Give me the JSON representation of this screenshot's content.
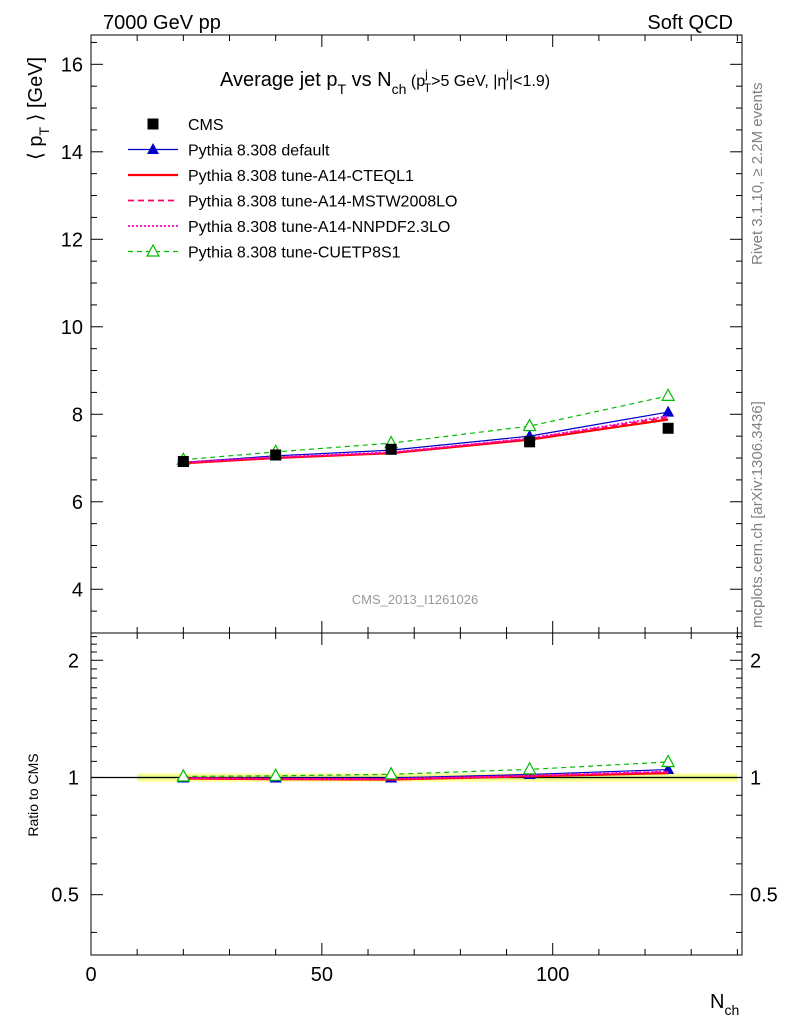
{
  "header": {
    "left": "7000 GeV pp",
    "right": "Soft QCD"
  },
  "side_labels": {
    "top": "Rivet 3.1.10, ≥ 2.2M events",
    "bottom": "mcplots.cern.ch [arXiv:1306.3436]"
  },
  "analysis_tag": "CMS_2013_I1261026",
  "chart_data": [
    {
      "type": "line",
      "title_parts": {
        "main": "Average jet p",
        "main_sub": "T",
        "vs": " vs N",
        "vs_sub": "ch",
        "cut_open": " (p",
        "cut_sup": "j",
        "cut_sub": "T",
        "cut_mid": ">5 GeV, |η",
        "cut_sup2": "j",
        "cut_close": "|<1.9)"
      },
      "ylabel_parts": {
        "open": "⟨ p",
        "sub": "T",
        "close": " ⟩ [GeV]"
      },
      "xlim": [
        0,
        141
      ],
      "ylim": [
        3,
        16.67
      ],
      "yticks": [
        4,
        6,
        8,
        10,
        12,
        14,
        16
      ],
      "x": [
        20,
        40,
        65,
        95,
        125
      ],
      "series": [
        {
          "name": "CMS",
          "style": "data",
          "color": "#000000",
          "marker": "square",
          "values": [
            6.92,
            7.07,
            7.2,
            7.37,
            7.68
          ]
        },
        {
          "name": "Pythia 8.308 default",
          "style": "solid-thin",
          "color": "#0000cc",
          "marker": "triangle-filled",
          "values": [
            6.9,
            7.05,
            7.18,
            7.5,
            8.05
          ]
        },
        {
          "name": "Pythia 8.308 tune-A14-CTEQL1",
          "style": "solid-thick",
          "color": "#ff0000",
          "marker": "none",
          "values": [
            6.88,
            7.0,
            7.11,
            7.42,
            7.88
          ]
        },
        {
          "name": "Pythia 8.308 tune-A14-MSTW2008LO",
          "style": "dashed",
          "color": "#ff0066",
          "marker": "none",
          "values": [
            6.89,
            7.01,
            7.12,
            7.44,
            7.93
          ]
        },
        {
          "name": "Pythia 8.308 tune-A14-NNPDF2.3LO",
          "style": "dotted",
          "color": "#ff00cc",
          "marker": "none",
          "values": [
            6.9,
            7.02,
            7.13,
            7.45,
            7.96
          ]
        },
        {
          "name": "Pythia 8.308 tune-CUETP8S1",
          "style": "dashed-green",
          "color": "#00bb00",
          "marker": "triangle-open",
          "values": [
            6.96,
            7.14,
            7.34,
            7.73,
            8.42
          ]
        }
      ]
    },
    {
      "type": "line",
      "ylabel": "Ratio to CMS",
      "xlabel_parts": {
        "main": "N",
        "sub": "ch"
      },
      "xlim": [
        0,
        141
      ],
      "ylim": [
        0.35,
        2.35
      ],
      "log_scale_y": true,
      "yticks": [
        0.5,
        1,
        2
      ],
      "ytick_labels": [
        "0.5",
        "1",
        "2"
      ],
      "xticks": [
        0,
        50,
        100
      ],
      "xtick_labels": [
        "0",
        "50",
        "100"
      ],
      "band": {
        "x_start": 10,
        "x_end": 140,
        "color": "#ffff99",
        "inner_color": "#ccee88"
      },
      "x": [
        20,
        40,
        65,
        95,
        125
      ],
      "series": [
        {
          "name": "Pythia 8.308 default",
          "color": "#0000cc",
          "values": [
            0.997,
            0.997,
            0.997,
            1.018,
            1.048
          ]
        },
        {
          "name": "Pythia 8.308 tune-A14-CTEQL1",
          "color": "#ff0000",
          "values": [
            0.994,
            0.99,
            0.988,
            1.007,
            1.026
          ]
        },
        {
          "name": "Pythia 8.308 tune-A14-MSTW2008LO",
          "color": "#ff0066",
          "values": [
            0.996,
            0.992,
            0.99,
            1.009,
            1.033
          ]
        },
        {
          "name": "Pythia 8.308 tune-A14-NNPDF2.3LO",
          "color": "#ff00cc",
          "values": [
            0.997,
            0.993,
            0.991,
            1.011,
            1.036
          ]
        },
        {
          "name": "Pythia 8.308 tune-CUETP8S1",
          "color": "#00bb00",
          "values": [
            1.006,
            1.01,
            1.019,
            1.049,
            1.096
          ]
        }
      ]
    }
  ]
}
